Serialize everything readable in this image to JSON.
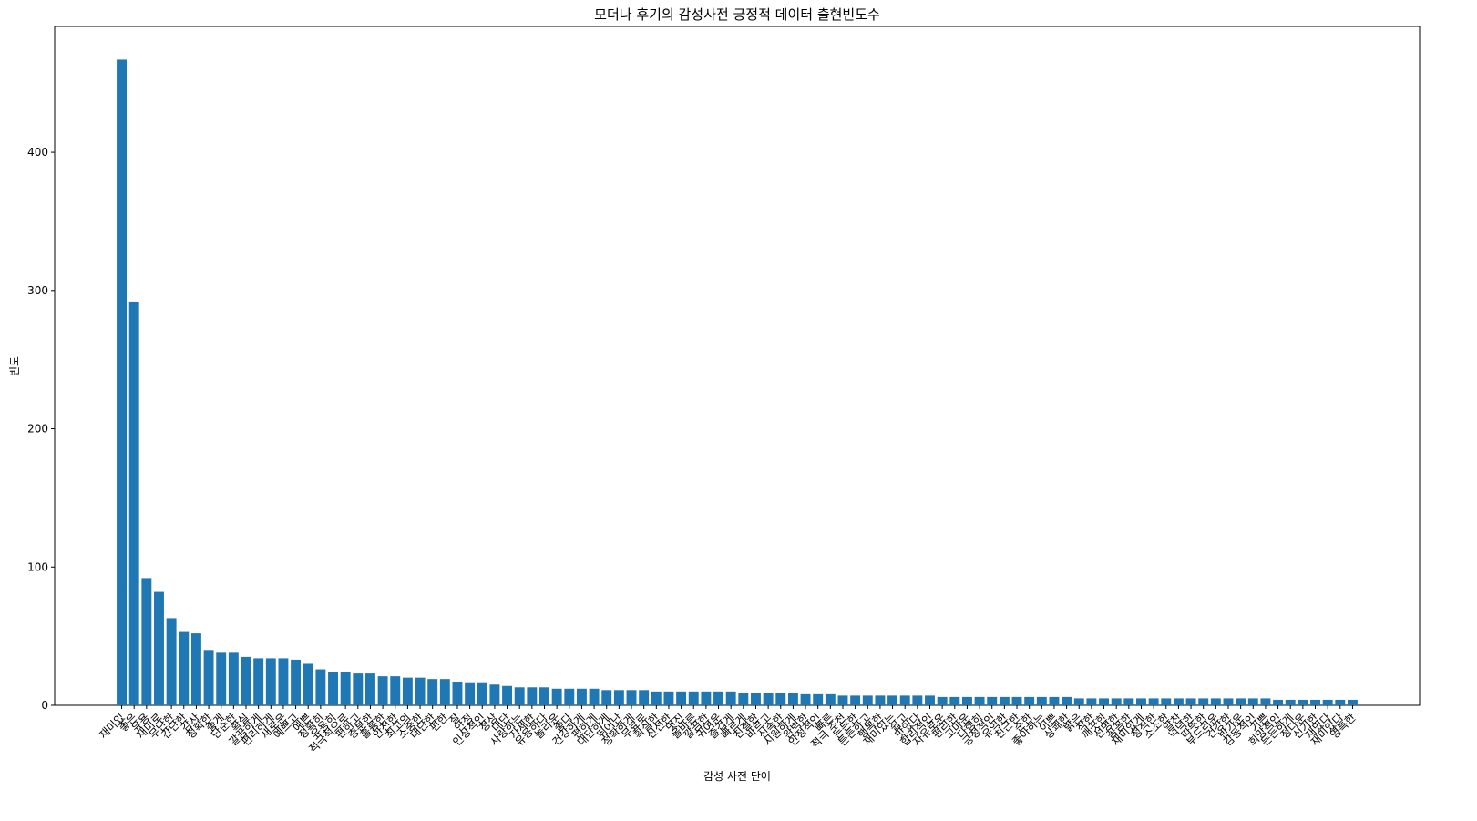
{
  "chart_data": {
    "type": "bar",
    "title": "모더나 후기의 감성사전 긍정적 데이터 출현빈도수",
    "xlabel": "감성 사전 단어",
    "ylabel": "빈도",
    "color": "#1f77b4",
    "categories": [
      "재미있",
      "좋은",
      "유용",
      "재미로",
      "무난한",
      "간단한",
      "감사",
      "정확한",
      "좋게",
      "단순한",
      "확실",
      "깔끔하게",
      "편리하게",
      "새로운",
      "예쁘고",
      "예쁜",
      "정확히",
      "유용히",
      "적극적으로",
      "편하고",
      "충분한",
      "훌륭한",
      "안전한",
      "최고의",
      "소중한",
      "대단한",
      "편한",
      "잘",
      "안정",
      "인상적인",
      "정상",
      "대단",
      "사랑하는",
      "자세한",
      "유용하다",
      "놀라운",
      "좋다",
      "건강하게",
      "편하게",
      "대단하게",
      "뛰어난",
      "정확하게",
      "무료로",
      "확실한",
      "신선한",
      "멋진",
      "올바른",
      "깔끔한",
      "귀여운",
      "즐겁게",
      "빠르게",
      "친절한",
      "바르고",
      "신속한",
      "시원하게",
      "완벽한",
      "안정적인",
      "빠른",
      "적극 추천",
      "든든한",
      "튼튼하고",
      "행복한",
      "재미있는",
      "쉽고",
      "맛있다",
      "합리적인",
      "자유로운",
      "편리한",
      "고마운",
      "다행히",
      "긍정적인",
      "유익한",
      "친근한",
      "순한",
      "좋아하는",
      "이쁜",
      "상쾌한",
      "밝은",
      "착한",
      "깨끗한",
      "선명한",
      "꼼꼼한",
      "재미있게",
      "정직한",
      "소소한",
      "알찬",
      "넉넉한",
      "따뜻한",
      "부드러운",
      "건강한",
      "반가운",
      "감동적인",
      "기쁜",
      "희망적인",
      "든든하게",
      "정다운",
      "신기한",
      "재밌다",
      "재미있다",
      "영특한"
    ],
    "values": [
      467,
      292,
      92,
      82,
      63,
      53,
      52,
      40,
      38,
      38,
      35,
      34,
      34,
      34,
      33,
      30,
      26,
      24,
      24,
      23,
      23,
      21,
      21,
      20,
      20,
      19,
      19,
      17,
      16,
      16,
      15,
      14,
      13,
      13,
      13,
      12,
      12,
      12,
      12,
      11,
      11,
      11,
      11,
      10,
      10,
      10,
      10,
      10,
      10,
      10,
      9,
      9,
      9,
      9,
      9,
      8,
      8,
      8,
      7,
      7,
      7,
      7,
      7,
      7,
      7,
      7,
      6,
      6,
      6,
      6,
      6,
      6,
      6,
      6,
      6,
      6,
      6,
      5,
      5,
      5,
      5,
      5,
      5,
      5,
      5,
      5,
      5,
      5,
      5,
      5,
      5,
      5,
      5,
      4,
      4,
      4,
      4,
      4,
      4,
      4
    ],
    "ylim": [
      0,
      491
    ],
    "yticks": [
      0,
      100,
      200,
      300,
      400
    ]
  }
}
